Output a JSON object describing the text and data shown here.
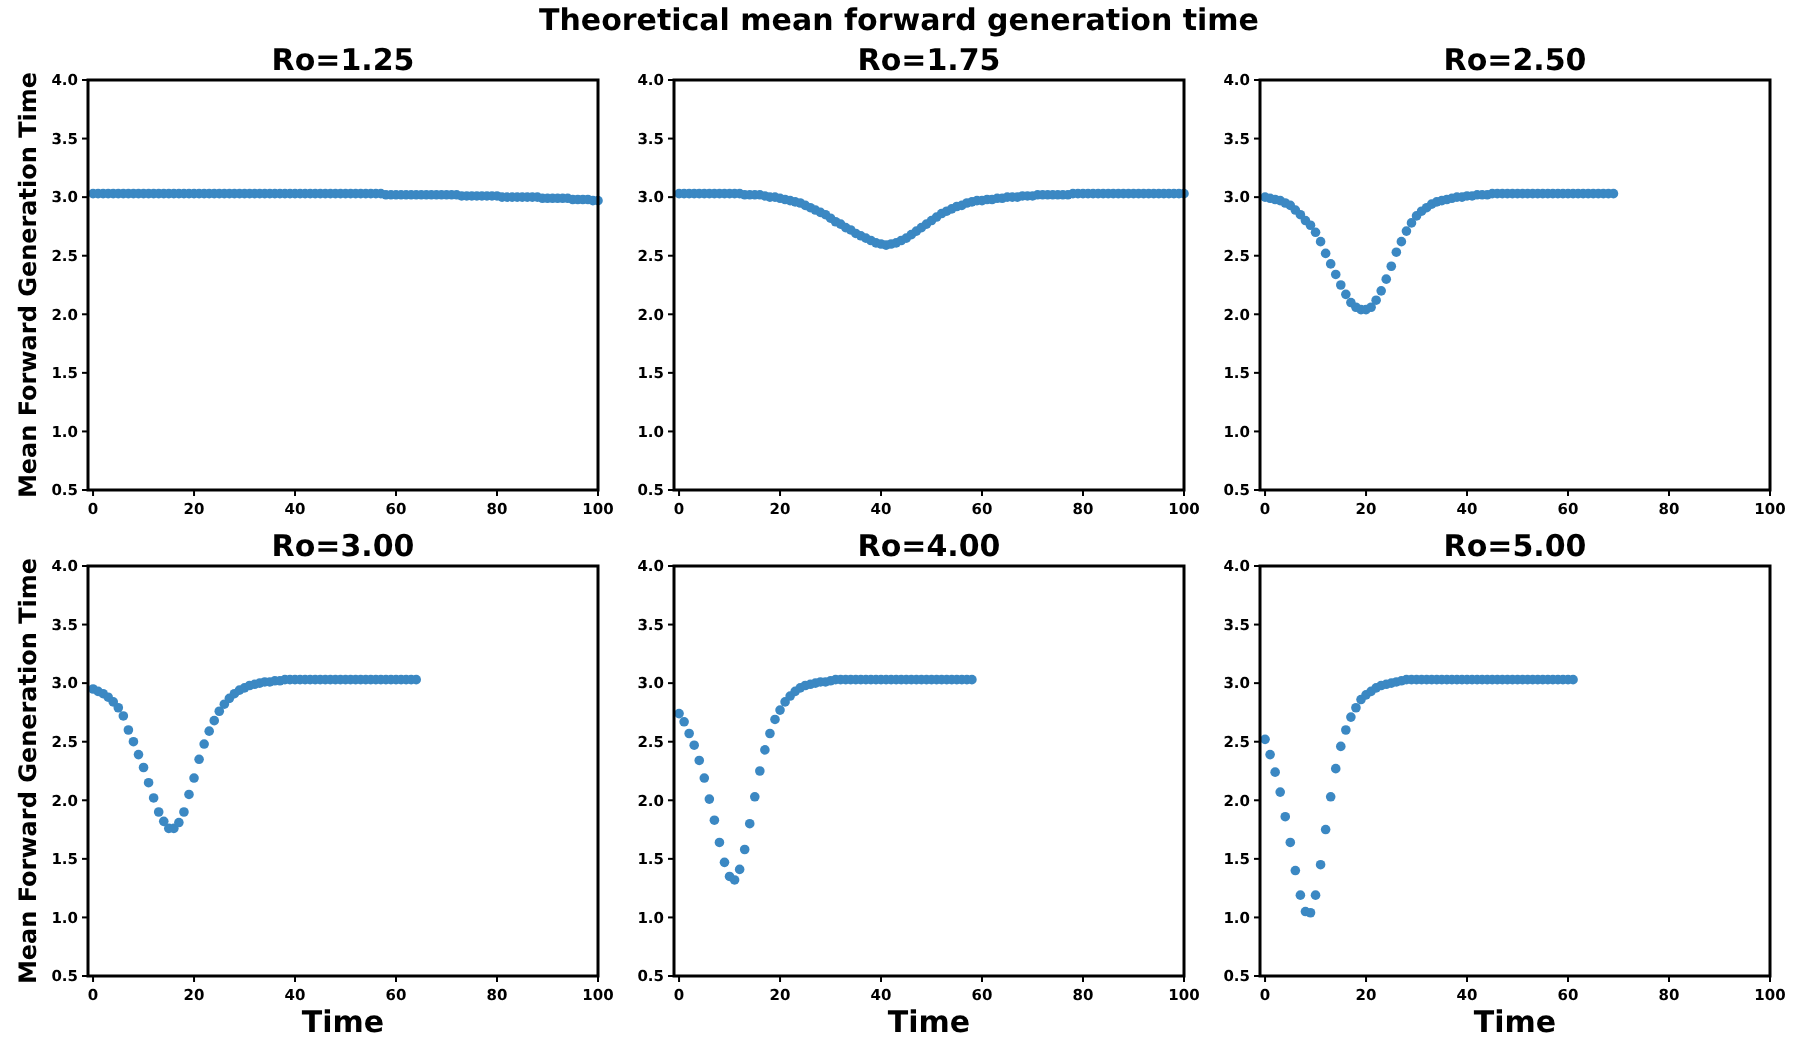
{
  "chart_data": [
    {
      "type": "scatter",
      "title": "Ro=1.25",
      "ylabel": "Mean Forward Generation Time",
      "annotations": [
        "Theoretical mean forward generation time"
      ],
      "marker": "circle",
      "grid": false,
      "xlim": [
        -1,
        100
      ],
      "ylim": [
        0.5,
        4.0
      ],
      "xticks": [
        0,
        20,
        40,
        60,
        80,
        100
      ],
      "yticks": [
        {
          "value": 0.5,
          "label": "0.5"
        },
        {
          "value": 1,
          "label": "1.0"
        },
        {
          "value": 1.5,
          "label": "1.5"
        },
        {
          "value": 2,
          "label": "2.0"
        },
        {
          "value": 2.5,
          "label": "2.5"
        },
        {
          "value": 3,
          "label": "3.0"
        },
        {
          "value": 3.5,
          "label": "3.5"
        },
        {
          "value": 4,
          "label": "4.0"
        }
      ],
      "series": [
        {
          "color": "#3b88c3",
          "x": [
            0,
            1,
            2,
            3,
            4,
            5,
            6,
            7,
            8,
            9,
            10,
            11,
            12,
            13,
            14,
            15,
            16,
            17,
            18,
            19,
            20,
            21,
            22,
            23,
            24,
            25,
            26,
            27,
            28,
            29,
            30,
            31,
            32,
            33,
            34,
            35,
            36,
            37,
            38,
            39,
            40,
            41,
            42,
            43,
            44,
            45,
            46,
            47,
            48,
            49,
            50,
            51,
            52,
            53,
            54,
            55,
            56,
            57,
            58,
            59,
            60,
            61,
            62,
            63,
            64,
            65,
            66,
            67,
            68,
            69,
            70,
            71,
            72,
            73,
            74,
            75,
            76,
            77,
            78,
            79,
            80,
            81,
            82,
            83,
            84,
            85,
            86,
            87,
            88,
            89,
            90,
            91,
            92,
            93,
            94,
            95,
            96,
            97,
            98,
            99,
            100
          ],
          "values": [
            3.03,
            3.03,
            3.03,
            3.03,
            3.03,
            3.03,
            3.03,
            3.03,
            3.03,
            3.03,
            3.03,
            3.03,
            3.03,
            3.03,
            3.03,
            3.03,
            3.03,
            3.03,
            3.03,
            3.03,
            3.03,
            3.03,
            3.03,
            3.03,
            3.03,
            3.03,
            3.03,
            3.03,
            3.03,
            3.03,
            3.03,
            3.03,
            3.03,
            3.03,
            3.03,
            3.03,
            3.03,
            3.03,
            3.03,
            3.03,
            3.03,
            3.03,
            3.03,
            3.03,
            3.03,
            3.03,
            3.03,
            3.03,
            3.03,
            3.03,
            3.03,
            3.03,
            3.03,
            3.03,
            3.03,
            3.03,
            3.03,
            3.03,
            3.02,
            3.02,
            3.02,
            3.02,
            3.02,
            3.02,
            3.02,
            3.02,
            3.02,
            3.02,
            3.02,
            3.02,
            3.02,
            3.02,
            3.02,
            3.01,
            3.01,
            3.01,
            3.01,
            3.01,
            3.01,
            3.01,
            3.01,
            3.0,
            3.0,
            3.0,
            3.0,
            3.0,
            3.0,
            3.0,
            3.0,
            2.99,
            2.99,
            2.99,
            2.99,
            2.99,
            2.99,
            2.98,
            2.98,
            2.98,
            2.98,
            2.97,
            2.97
          ]
        }
      ]
    },
    {
      "type": "scatter",
      "title": "Ro=1.75",
      "marker": "circle",
      "grid": false,
      "xlim": [
        -1,
        100
      ],
      "ylim": [
        0.5,
        4.0
      ],
      "xticks": [
        0,
        20,
        40,
        60,
        80,
        100
      ],
      "yticks": [
        {
          "value": 0.5,
          "label": "0.5"
        },
        {
          "value": 1,
          "label": "1.0"
        },
        {
          "value": 1.5,
          "label": "1.5"
        },
        {
          "value": 2,
          "label": "2.0"
        },
        {
          "value": 2.5,
          "label": "2.5"
        },
        {
          "value": 3,
          "label": "3.0"
        },
        {
          "value": 3.5,
          "label": "3.5"
        },
        {
          "value": 4,
          "label": "4.0"
        }
      ],
      "series": [
        {
          "color": "#3b88c3",
          "x": [
            0,
            1,
            2,
            3,
            4,
            5,
            6,
            7,
            8,
            9,
            10,
            11,
            12,
            13,
            14,
            15,
            16,
            17,
            18,
            19,
            20,
            21,
            22,
            23,
            24,
            25,
            26,
            27,
            28,
            29,
            30,
            31,
            32,
            33,
            34,
            35,
            36,
            37,
            38,
            39,
            40,
            41,
            42,
            43,
            44,
            45,
            46,
            47,
            48,
            49,
            50,
            51,
            52,
            53,
            54,
            55,
            56,
            57,
            58,
            59,
            60,
            61,
            62,
            63,
            64,
            65,
            66,
            67,
            68,
            69,
            70,
            71,
            72,
            73,
            74,
            75,
            76,
            77,
            78,
            79,
            80,
            81,
            82,
            83,
            84,
            85,
            86,
            87,
            88,
            89,
            90,
            91,
            92,
            93,
            94,
            95,
            96,
            97,
            98,
            99,
            100
          ],
          "values": [
            3.03,
            3.03,
            3.03,
            3.03,
            3.03,
            3.03,
            3.03,
            3.03,
            3.03,
            3.03,
            3.03,
            3.03,
            3.03,
            3.02,
            3.02,
            3.02,
            3.02,
            3.01,
            3.0,
            3.0,
            2.99,
            2.98,
            2.97,
            2.96,
            2.95,
            2.93,
            2.91,
            2.89,
            2.87,
            2.85,
            2.82,
            2.79,
            2.77,
            2.74,
            2.72,
            2.69,
            2.67,
            2.65,
            2.63,
            2.61,
            2.6,
            2.59,
            2.6,
            2.61,
            2.63,
            2.65,
            2.68,
            2.71,
            2.74,
            2.77,
            2.8,
            2.83,
            2.86,
            2.88,
            2.9,
            2.92,
            2.93,
            2.95,
            2.96,
            2.97,
            2.97,
            2.98,
            2.98,
            2.99,
            2.99,
            3.0,
            3.0,
            3.0,
            3.01,
            3.01,
            3.01,
            3.02,
            3.02,
            3.02,
            3.02,
            3.02,
            3.02,
            3.02,
            3.03,
            3.03,
            3.03,
            3.03,
            3.03,
            3.03,
            3.03,
            3.03,
            3.03,
            3.03,
            3.03,
            3.03,
            3.03,
            3.03,
            3.03,
            3.03,
            3.03,
            3.03,
            3.03,
            3.03,
            3.03,
            3.03,
            3.03
          ]
        }
      ]
    },
    {
      "type": "scatter",
      "title": "Ro=2.50",
      "marker": "circle",
      "grid": false,
      "xlim": [
        -1,
        100
      ],
      "ylim": [
        0.5,
        4.0
      ],
      "xticks": [
        0,
        20,
        40,
        60,
        80,
        100
      ],
      "yticks": [
        {
          "value": 0.5,
          "label": "0.5"
        },
        {
          "value": 1,
          "label": "1.0"
        },
        {
          "value": 1.5,
          "label": "1.5"
        },
        {
          "value": 2,
          "label": "2.0"
        },
        {
          "value": 2.5,
          "label": "2.5"
        },
        {
          "value": 3,
          "label": "3.0"
        },
        {
          "value": 3.5,
          "label": "3.5"
        },
        {
          "value": 4,
          "label": "4.0"
        }
      ],
      "series": [
        {
          "color": "#3b88c3",
          "x": [
            0,
            1,
            2,
            3,
            4,
            5,
            6,
            7,
            8,
            9,
            10,
            11,
            12,
            13,
            14,
            15,
            16,
            17,
            18,
            19,
            20,
            21,
            22,
            23,
            24,
            25,
            26,
            27,
            28,
            29,
            30,
            31,
            32,
            33,
            34,
            35,
            36,
            37,
            38,
            39,
            40,
            41,
            42,
            43,
            44,
            45,
            46,
            47,
            48,
            49,
            50,
            51,
            52,
            53,
            54,
            55,
            56,
            57,
            58,
            59,
            60,
            61,
            62,
            63,
            64,
            65,
            66,
            67,
            68,
            69
          ],
          "values": [
            3.0,
            2.99,
            2.98,
            2.97,
            2.95,
            2.93,
            2.89,
            2.85,
            2.8,
            2.76,
            2.7,
            2.62,
            2.52,
            2.43,
            2.34,
            2.25,
            2.17,
            2.1,
            2.06,
            2.04,
            2.04,
            2.06,
            2.12,
            2.2,
            2.3,
            2.41,
            2.53,
            2.62,
            2.71,
            2.78,
            2.84,
            2.88,
            2.91,
            2.94,
            2.96,
            2.97,
            2.98,
            2.99,
            3.0,
            3.0,
            3.01,
            3.01,
            3.02,
            3.02,
            3.02,
            3.03,
            3.03,
            3.03,
            3.03,
            3.03,
            3.03,
            3.03,
            3.03,
            3.03,
            3.03,
            3.03,
            3.03,
            3.03,
            3.03,
            3.03,
            3.03,
            3.03,
            3.03,
            3.03,
            3.03,
            3.03,
            3.03,
            3.03,
            3.03,
            3.03
          ]
        }
      ]
    },
    {
      "type": "scatter",
      "title": "Ro=3.00",
      "ylabel": "Mean Forward Generation Time",
      "xlabel": "Time",
      "marker": "circle",
      "grid": false,
      "xlim": [
        -1,
        100
      ],
      "ylim": [
        0.5,
        4.0
      ],
      "xticks": [
        0,
        20,
        40,
        60,
        80,
        100
      ],
      "yticks": [
        {
          "value": 0.5,
          "label": "0.5"
        },
        {
          "value": 1,
          "label": "1.0"
        },
        {
          "value": 1.5,
          "label": "1.5"
        },
        {
          "value": 2,
          "label": "2.0"
        },
        {
          "value": 2.5,
          "label": "2.5"
        },
        {
          "value": 3,
          "label": "3.0"
        },
        {
          "value": 3.5,
          "label": "3.5"
        },
        {
          "value": 4,
          "label": "4.0"
        }
      ],
      "series": [
        {
          "color": "#3b88c3",
          "x": [
            0,
            1,
            2,
            3,
            4,
            5,
            6,
            7,
            8,
            9,
            10,
            11,
            12,
            13,
            14,
            15,
            16,
            17,
            18,
            19,
            20,
            21,
            22,
            23,
            24,
            25,
            26,
            27,
            28,
            29,
            30,
            31,
            32,
            33,
            34,
            35,
            36,
            37,
            38,
            39,
            40,
            41,
            42,
            43,
            44,
            45,
            46,
            47,
            48,
            49,
            50,
            51,
            52,
            53,
            54,
            55,
            56,
            57,
            58,
            59,
            60,
            61,
            62,
            63,
            64
          ],
          "values": [
            2.95,
            2.93,
            2.91,
            2.88,
            2.84,
            2.79,
            2.72,
            2.6,
            2.5,
            2.39,
            2.28,
            2.15,
            2.02,
            1.9,
            1.82,
            1.76,
            1.76,
            1.81,
            1.9,
            2.05,
            2.19,
            2.35,
            2.48,
            2.59,
            2.68,
            2.76,
            2.82,
            2.87,
            2.91,
            2.94,
            2.96,
            2.98,
            2.99,
            3.0,
            3.01,
            3.01,
            3.02,
            3.02,
            3.03,
            3.03,
            3.03,
            3.03,
            3.03,
            3.03,
            3.03,
            3.03,
            3.03,
            3.03,
            3.03,
            3.03,
            3.03,
            3.03,
            3.03,
            3.03,
            3.03,
            3.03,
            3.03,
            3.03,
            3.03,
            3.03,
            3.03,
            3.03,
            3.03,
            3.03,
            3.03
          ]
        }
      ]
    },
    {
      "type": "scatter",
      "title": "Ro=4.00",
      "xlabel": "Time",
      "marker": "circle",
      "grid": false,
      "xlim": [
        -1,
        100
      ],
      "ylim": [
        0.5,
        4.0
      ],
      "xticks": [
        0,
        20,
        40,
        60,
        80,
        100
      ],
      "yticks": [
        {
          "value": 0.5,
          "label": "0.5"
        },
        {
          "value": 1,
          "label": "1.0"
        },
        {
          "value": 1.5,
          "label": "1.5"
        },
        {
          "value": 2,
          "label": "2.0"
        },
        {
          "value": 2.5,
          "label": "2.5"
        },
        {
          "value": 3,
          "label": "3.0"
        },
        {
          "value": 3.5,
          "label": "3.5"
        },
        {
          "value": 4,
          "label": "4.0"
        }
      ],
      "series": [
        {
          "color": "#3b88c3",
          "x": [
            0,
            1,
            2,
            3,
            4,
            5,
            6,
            7,
            8,
            9,
            10,
            11,
            12,
            13,
            14,
            15,
            16,
            17,
            18,
            19,
            20,
            21,
            22,
            23,
            24,
            25,
            26,
            27,
            28,
            29,
            30,
            31,
            32,
            33,
            34,
            35,
            36,
            37,
            38,
            39,
            40,
            41,
            42,
            43,
            44,
            45,
            46,
            47,
            48,
            49,
            50,
            51,
            52,
            53,
            54,
            55,
            56,
            57,
            58
          ],
          "values": [
            2.74,
            2.67,
            2.57,
            2.47,
            2.34,
            2.19,
            2.01,
            1.83,
            1.64,
            1.47,
            1.35,
            1.32,
            1.41,
            1.58,
            1.8,
            2.03,
            2.25,
            2.43,
            2.57,
            2.69,
            2.77,
            2.84,
            2.89,
            2.93,
            2.96,
            2.98,
            2.99,
            3.0,
            3.01,
            3.01,
            3.02,
            3.03,
            3.03,
            3.03,
            3.03,
            3.03,
            3.03,
            3.03,
            3.03,
            3.03,
            3.03,
            3.03,
            3.03,
            3.03,
            3.03,
            3.03,
            3.03,
            3.03,
            3.03,
            3.03,
            3.03,
            3.03,
            3.03,
            3.03,
            3.03,
            3.03,
            3.03,
            3.03,
            3.03
          ]
        }
      ]
    },
    {
      "type": "scatter",
      "title": "Ro=5.00",
      "xlabel": "Time",
      "marker": "circle",
      "grid": false,
      "xlim": [
        -1,
        100
      ],
      "ylim": [
        0.5,
        4.0
      ],
      "xticks": [
        0,
        20,
        40,
        60,
        80,
        100
      ],
      "yticks": [
        {
          "value": 0.5,
          "label": "0.5"
        },
        {
          "value": 1,
          "label": "1.0"
        },
        {
          "value": 1.5,
          "label": "1.5"
        },
        {
          "value": 2,
          "label": "2.0"
        },
        {
          "value": 2.5,
          "label": "2.5"
        },
        {
          "value": 3,
          "label": "3.0"
        },
        {
          "value": 3.5,
          "label": "3.5"
        },
        {
          "value": 4,
          "label": "4.0"
        }
      ],
      "series": [
        {
          "color": "#3b88c3",
          "x": [
            0,
            1,
            2,
            3,
            4,
            5,
            6,
            7,
            8,
            9,
            10,
            11,
            12,
            13,
            14,
            15,
            16,
            17,
            18,
            19,
            20,
            21,
            22,
            23,
            24,
            25,
            26,
            27,
            28,
            29,
            30,
            31,
            32,
            33,
            34,
            35,
            36,
            37,
            38,
            39,
            40,
            41,
            42,
            43,
            44,
            45,
            46,
            47,
            48,
            49,
            50,
            51,
            52,
            53,
            54,
            55,
            56,
            57,
            58,
            59,
            60,
            61
          ],
          "values": [
            2.52,
            2.39,
            2.24,
            2.07,
            1.86,
            1.64,
            1.4,
            1.19,
            1.05,
            1.04,
            1.19,
            1.45,
            1.75,
            2.03,
            2.27,
            2.46,
            2.6,
            2.71,
            2.79,
            2.86,
            2.9,
            2.93,
            2.96,
            2.98,
            2.99,
            3.0,
            3.01,
            3.02,
            3.03,
            3.03,
            3.03,
            3.03,
            3.03,
            3.03,
            3.03,
            3.03,
            3.03,
            3.03,
            3.03,
            3.03,
            3.03,
            3.03,
            3.03,
            3.03,
            3.03,
            3.03,
            3.03,
            3.03,
            3.03,
            3.03,
            3.03,
            3.03,
            3.03,
            3.03,
            3.03,
            3.03,
            3.03,
            3.03,
            3.03,
            3.03,
            3.03,
            3.03
          ]
        }
      ]
    }
  ]
}
